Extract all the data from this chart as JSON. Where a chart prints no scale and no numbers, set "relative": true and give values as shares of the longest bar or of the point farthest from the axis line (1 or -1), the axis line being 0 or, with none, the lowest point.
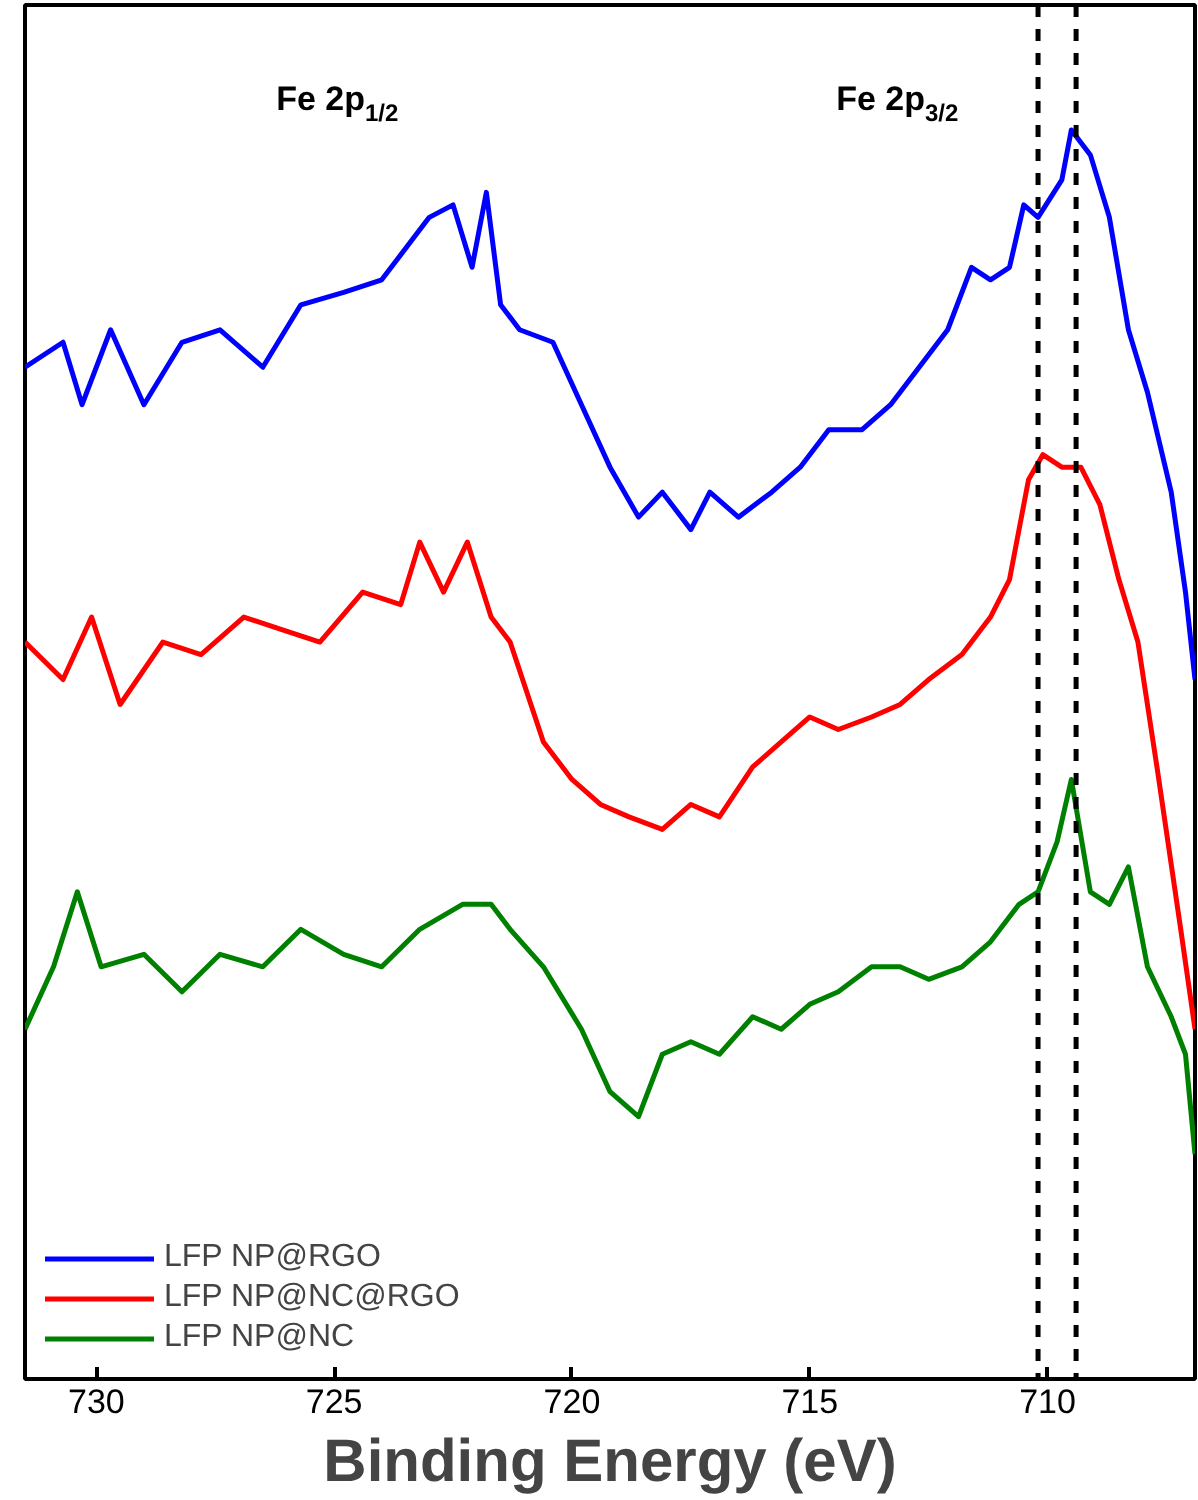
{
  "chart_data": {
    "type": "line",
    "relative": true,
    "xlabel": "Binding Energy (eV)",
    "xlim": [
      731.5,
      706.9
    ],
    "xticks": [
      730,
      725,
      720,
      715,
      710
    ],
    "tick_labels": "x",
    "grid": false,
    "legend": "bottom left",
    "line_style": "solid",
    "marker": "none",
    "annotations": [
      "Fe 2p$_{1/2}$",
      "Fe 2p$_{3/2}$"
    ],
    "ref_lines": [
      {
        "axis": "x",
        "value": 710.2,
        "label": null,
        "color": "#000000",
        "line_style": "dashed"
      },
      {
        "axis": "x",
        "value": 709.4,
        "label": null,
        "color": "#000000",
        "line_style": "dashed"
      }
    ],
    "series": [
      {
        "name": "LFP NP@RGO",
        "color": "#0000ff",
        "x": [
          731.5,
          730.7,
          730.3,
          729.7,
          729.0,
          728.2,
          727.4,
          726.5,
          725.7,
          724.8,
          724.0,
          723.4,
          723.0,
          722.5,
          722.1,
          721.8,
          721.5,
          721.1,
          720.4,
          719.8,
          719.2,
          718.6,
          718.1,
          717.5,
          717.1,
          716.5,
          715.8,
          715.2,
          714.6,
          713.9,
          713.3,
          712.7,
          712.1,
          711.6,
          711.2,
          710.8,
          710.5,
          710.2,
          709.7,
          709.5,
          709.1,
          708.7,
          708.3,
          707.9,
          707.4,
          707.1,
          706.9
        ],
        "values": [
          0.81,
          0.83,
          0.78,
          0.84,
          0.78,
          0.83,
          0.84,
          0.81,
          0.86,
          0.87,
          0.88,
          0.91,
          0.93,
          0.94,
          0.89,
          0.95,
          0.86,
          0.84,
          0.83,
          0.78,
          0.73,
          0.69,
          0.71,
          0.68,
          0.71,
          0.69,
          0.71,
          0.73,
          0.76,
          0.76,
          0.78,
          0.81,
          0.84,
          0.89,
          0.88,
          0.89,
          0.94,
          0.93,
          0.96,
          1.0,
          0.98,
          0.93,
          0.84,
          0.79,
          0.71,
          0.63,
          0.56
        ]
      },
      {
        "name": "LFP NP@NC@RGO",
        "color": "#ff0000",
        "x": [
          731.5,
          730.7,
          730.1,
          729.5,
          728.6,
          727.8,
          726.9,
          726.1,
          725.3,
          724.4,
          723.6,
          723.2,
          722.7,
          722.2,
          721.7,
          721.3,
          720.6,
          720.0,
          719.4,
          718.8,
          718.1,
          717.5,
          716.9,
          716.2,
          715.6,
          715.0,
          714.4,
          713.7,
          713.1,
          712.5,
          711.8,
          711.2,
          710.8,
          710.4,
          710.1,
          709.7,
          709.3,
          708.9,
          708.5,
          708.1,
          707.7,
          707.2,
          706.9
        ],
        "values": [
          0.59,
          0.56,
          0.61,
          0.54,
          0.59,
          0.58,
          0.61,
          0.6,
          0.59,
          0.63,
          0.62,
          0.67,
          0.63,
          0.67,
          0.61,
          0.59,
          0.51,
          0.48,
          0.46,
          0.45,
          0.44,
          0.46,
          0.45,
          0.49,
          0.51,
          0.53,
          0.52,
          0.53,
          0.54,
          0.56,
          0.58,
          0.61,
          0.64,
          0.72,
          0.74,
          0.73,
          0.73,
          0.7,
          0.64,
          0.59,
          0.49,
          0.36,
          0.28
        ]
      },
      {
        "name": "LFP NP@NC",
        "color": "#008000",
        "x": [
          731.5,
          730.9,
          730.4,
          729.9,
          729.0,
          728.2,
          727.4,
          726.5,
          725.7,
          724.8,
          724.0,
          723.2,
          722.3,
          721.7,
          721.3,
          720.6,
          719.8,
          719.2,
          718.6,
          718.1,
          717.5,
          716.9,
          716.2,
          715.6,
          715.0,
          714.4,
          713.7,
          713.1,
          712.5,
          711.8,
          711.2,
          710.6,
          710.2,
          709.8,
          709.5,
          709.1,
          708.7,
          708.3,
          707.9,
          707.4,
          707.1,
          706.9
        ],
        "values": [
          0.28,
          0.33,
          0.39,
          0.33,
          0.34,
          0.31,
          0.34,
          0.33,
          0.36,
          0.34,
          0.33,
          0.36,
          0.38,
          0.38,
          0.36,
          0.33,
          0.28,
          0.23,
          0.21,
          0.26,
          0.27,
          0.26,
          0.29,
          0.28,
          0.3,
          0.31,
          0.33,
          0.33,
          0.32,
          0.33,
          0.35,
          0.38,
          0.39,
          0.43,
          0.48,
          0.39,
          0.38,
          0.41,
          0.33,
          0.29,
          0.26,
          0.18
        ]
      }
    ]
  }
}
